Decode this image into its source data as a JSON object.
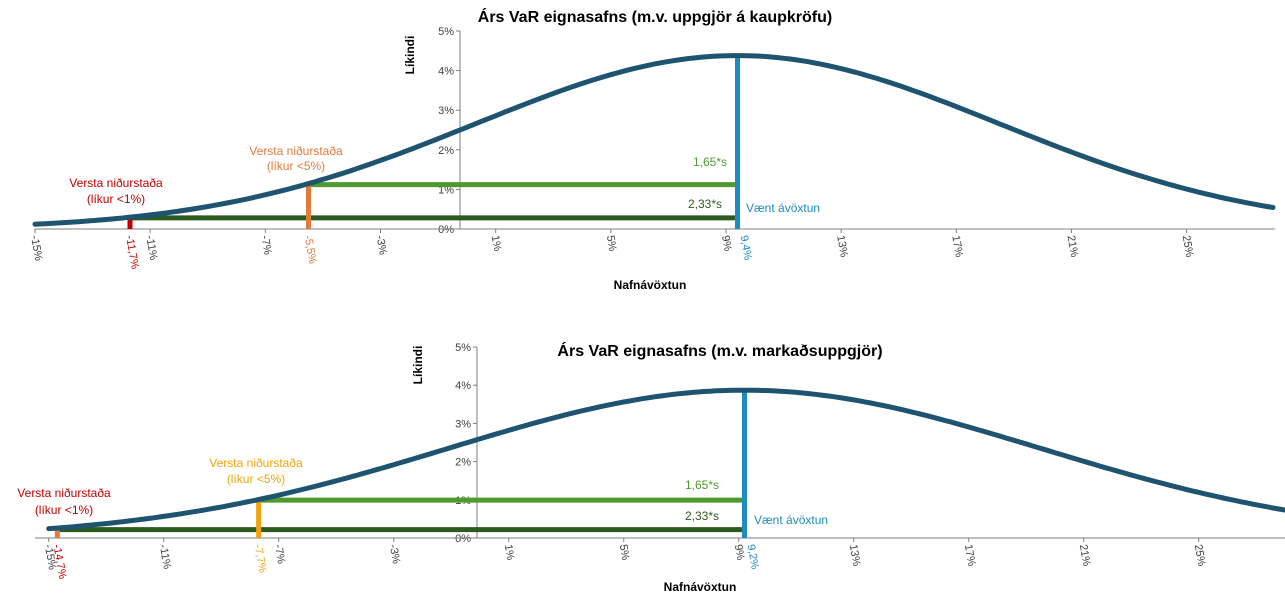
{
  "colors": {
    "curve": "#1f5470",
    "mean": "#1e8bc3",
    "green_light": "#4e9a2f",
    "green_dark": "#2d5a1e",
    "orange": "#e07b39",
    "amber": "#f0a30a",
    "red": "#c00000",
    "axis": "#7f7f7f"
  },
  "chart_data": [
    {
      "type": "line",
      "title": "Árs VaR eignasafns (m.v. uppgjör á kaupkröfu)",
      "xlabel": "Nafnávöxtun",
      "ylabel": "Líkindi",
      "x_ticks": [
        "-15%",
        "-11%",
        "-7%",
        "-3%",
        "1%",
        "5%",
        "9%",
        "13%",
        "17%",
        "21%",
        "25%"
      ],
      "y_ticks": [
        "0%",
        "1%",
        "2%",
        "3%",
        "4%",
        "5%"
      ],
      "xlim": [
        -15,
        28
      ],
      "ylim": [
        0,
        5
      ],
      "distribution": {
        "mean": 9.4,
        "sd": 9.1,
        "peak": 4.38
      },
      "curve_x_range": [
        -15,
        28
      ],
      "mean_label": "9,4%",
      "mean_text": "Vænt ávöxtun",
      "var95": {
        "x": -5.5,
        "x_label": "-5,5%",
        "line_text": "1,65*s",
        "line_y": 1.12,
        "title": "Versta niðurstaða",
        "prob": "(líkur <5%)"
      },
      "var99": {
        "x": -11.7,
        "x_label": "-11,7%",
        "line_text": "2,33*s",
        "line_y": 0.28,
        "title": "Versta niðurstaða",
        "prob": "(líkur <1%)"
      }
    },
    {
      "type": "line",
      "title": "Árs VaR eignasafns (m.v. markaðsuppgjör)",
      "xlabel": "Nafnávöxtun",
      "ylabel": "Líkindi",
      "x_ticks": [
        "-15%",
        "-11%",
        "-7%",
        "-3%",
        "1%",
        "5%",
        "9%",
        "13%",
        "17%",
        "21%",
        "25%"
      ],
      "y_ticks": [
        "0%",
        "1%",
        "2%",
        "3%",
        "4%",
        "5%"
      ],
      "xlim": [
        -15.2,
        28
      ],
      "ylim": [
        0,
        5
      ],
      "distribution": {
        "mean": 9.2,
        "sd": 10.3,
        "peak": 3.87
      },
      "curve_x_range": [
        -15,
        28
      ],
      "mean_label": "9,2%",
      "mean_text": "Vænt ávöxtun",
      "var95": {
        "x": -7.7,
        "x_label": "-7,7%",
        "line_text": "1,65*s",
        "line_y": 0.99,
        "title": "Versta niðurstaða",
        "prob": "(líkur <5%)"
      },
      "var99": {
        "x": -14.7,
        "x_label": "-14,7%",
        "line_text": "2,33*s",
        "line_y": 0.22,
        "title": "Versta niðurstaða",
        "prob": "(líkur <1%)"
      }
    }
  ]
}
